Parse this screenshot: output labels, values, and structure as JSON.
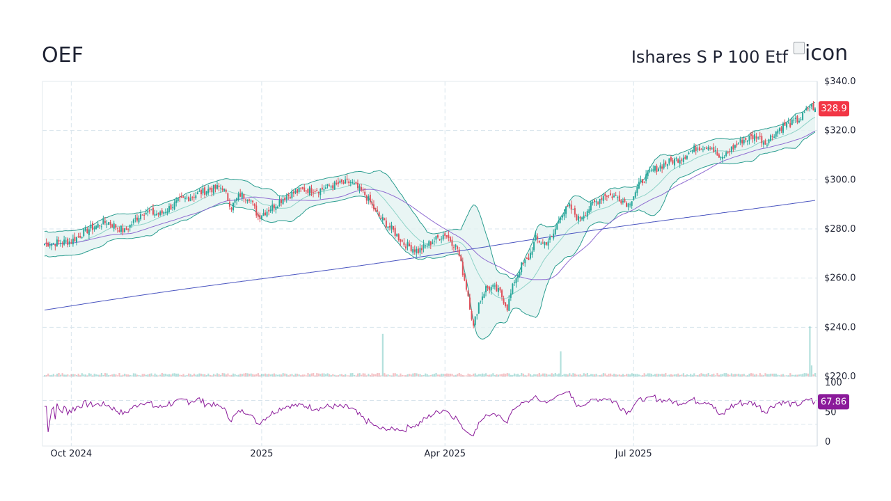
{
  "header": {
    "ticker": "OEF",
    "fund_name": "Ishares S P 100 Etf",
    "logo_alt": "icon"
  },
  "colors": {
    "up": "#26a69a",
    "down": "#e0505a",
    "band_fill": "#e3f3f1",
    "band_line": "#2a9d8f",
    "ma_short": "#8fd3c8",
    "ma_mid": "#8e6bd1",
    "ma_long": "#4a55c0",
    "rsi": "#8b1a9a",
    "price_badge": "#f23645",
    "rsi_badge": "#8b1a9a",
    "grid": "#d8e4ec"
  },
  "chart_data": {
    "type": "candlestick",
    "x_axis": {
      "ticks": [
        "Oct 2024",
        "2025",
        "Apr 2025",
        "Jul 2025"
      ]
    },
    "price_axis": {
      "ylim": [
        220,
        340
      ],
      "ticks": [
        220,
        240,
        260,
        280,
        300,
        320,
        340
      ],
      "tick_labels": [
        "$220.0",
        "$240.0",
        "$260.0",
        "$280.0",
        "$300.0",
        "$320.0",
        "$340.0"
      ]
    },
    "last_price": 328.9,
    "last_price_label": "328.9",
    "price_anchors": [
      [
        0,
        274
      ],
      [
        15,
        275
      ],
      [
        25,
        280
      ],
      [
        35,
        283
      ],
      [
        45,
        279
      ],
      [
        55,
        287
      ],
      [
        65,
        286
      ],
      [
        75,
        291
      ],
      [
        85,
        294
      ],
      [
        92,
        296
      ],
      [
        100,
        297
      ],
      [
        105,
        289
      ],
      [
        110,
        294
      ],
      [
        115,
        293
      ],
      [
        120,
        285
      ],
      [
        128,
        289
      ],
      [
        135,
        293
      ],
      [
        145,
        296
      ],
      [
        155,
        296
      ],
      [
        163,
        298
      ],
      [
        172,
        299
      ],
      [
        180,
        294
      ],
      [
        188,
        285
      ],
      [
        195,
        280
      ],
      [
        202,
        274
      ],
      [
        210,
        271
      ],
      [
        218,
        275
      ],
      [
        225,
        278
      ],
      [
        232,
        272
      ],
      [
        238,
        253
      ],
      [
        241,
        240
      ],
      [
        244,
        250
      ],
      [
        248,
        256
      ],
      [
        252,
        256
      ],
      [
        256,
        254
      ],
      [
        260,
        248
      ],
      [
        264,
        259
      ],
      [
        268,
        265
      ],
      [
        272,
        268
      ],
      [
        276,
        276
      ],
      [
        280,
        274
      ],
      [
        285,
        276
      ],
      [
        290,
        286
      ],
      [
        295,
        289
      ],
      [
        300,
        284
      ],
      [
        308,
        290
      ],
      [
        315,
        294
      ],
      [
        322,
        293
      ],
      [
        328,
        290
      ],
      [
        335,
        299
      ],
      [
        342,
        304
      ],
      [
        350,
        307
      ],
      [
        358,
        309
      ],
      [
        366,
        313
      ],
      [
        374,
        314
      ],
      [
        380,
        308
      ],
      [
        385,
        312
      ],
      [
        392,
        316
      ],
      [
        400,
        318
      ],
      [
        405,
        315
      ],
      [
        410,
        319
      ],
      [
        415,
        322
      ],
      [
        420,
        323
      ],
      [
        425,
        325
      ],
      [
        430,
        330
      ],
      [
        433,
        329
      ]
    ],
    "volume_spikes": [
      [
        190,
        0.85
      ],
      [
        290,
        0.5
      ],
      [
        430,
        1.0
      ],
      [
        431,
        0.22
      ]
    ],
    "rsi": {
      "ylim": [
        0,
        100
      ],
      "ticks": [
        0,
        50,
        100
      ],
      "last_value": 67.86,
      "last_value_label": "67.86"
    },
    "indicators": [
      "Bollinger Bands (20)",
      "SMA 20",
      "SMA 50",
      "SMA 200",
      "Volume",
      "RSI"
    ]
  }
}
